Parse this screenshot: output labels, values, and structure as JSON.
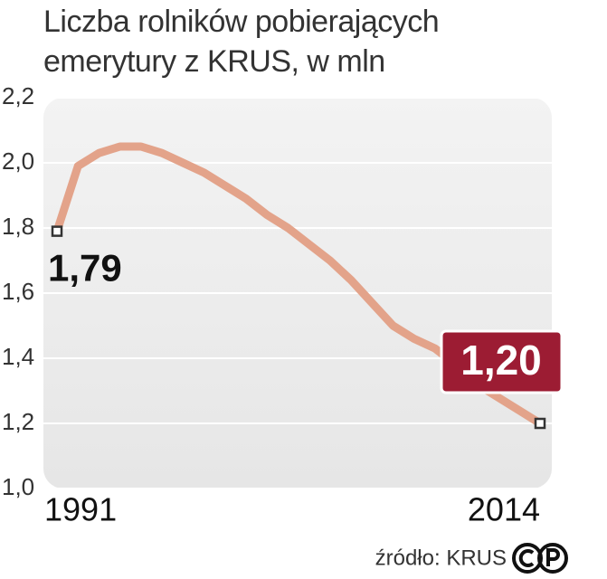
{
  "chart_data": {
    "type": "line",
    "title": "Liczba rolników pobierających emerytury z KRUS, w mln",
    "source": "źródło: KRUS",
    "x": [
      1991,
      1992,
      1993,
      1994,
      1995,
      1996,
      1997,
      1998,
      1999,
      2000,
      2001,
      2002,
      2003,
      2004,
      2005,
      2006,
      2007,
      2008,
      2009,
      2010,
      2011,
      2012,
      2013,
      2014
    ],
    "values": [
      1.79,
      1.99,
      2.03,
      2.05,
      2.05,
      2.03,
      2.0,
      1.97,
      1.93,
      1.89,
      1.84,
      1.8,
      1.75,
      1.7,
      1.64,
      1.57,
      1.5,
      1.46,
      1.43,
      1.38,
      1.32,
      1.28,
      1.24,
      1.2
    ],
    "value_labels": [
      "1,79",
      null,
      null,
      null,
      null,
      null,
      null,
      null,
      null,
      null,
      null,
      null,
      null,
      null,
      null,
      null,
      null,
      null,
      null,
      null,
      null,
      null,
      null,
      "1,20"
    ],
    "color": "#e3a38a",
    "xlim": [
      1991,
      2014
    ],
    "xticks": [
      1991,
      2014
    ],
    "ylim": [
      1.0,
      2.2
    ],
    "yticks": [
      {
        "value": 1.0,
        "label": "1,0"
      },
      {
        "value": 1.2,
        "label": "1,2"
      },
      {
        "value": 1.4,
        "label": "1,4"
      },
      {
        "value": 1.6,
        "label": "1,6"
      },
      {
        "value": 1.8,
        "label": "1,8"
      },
      {
        "value": 2.0,
        "label": "2,0"
      },
      {
        "value": 2.2,
        "label": "2,2"
      }
    ],
    "grid": true
  }
}
